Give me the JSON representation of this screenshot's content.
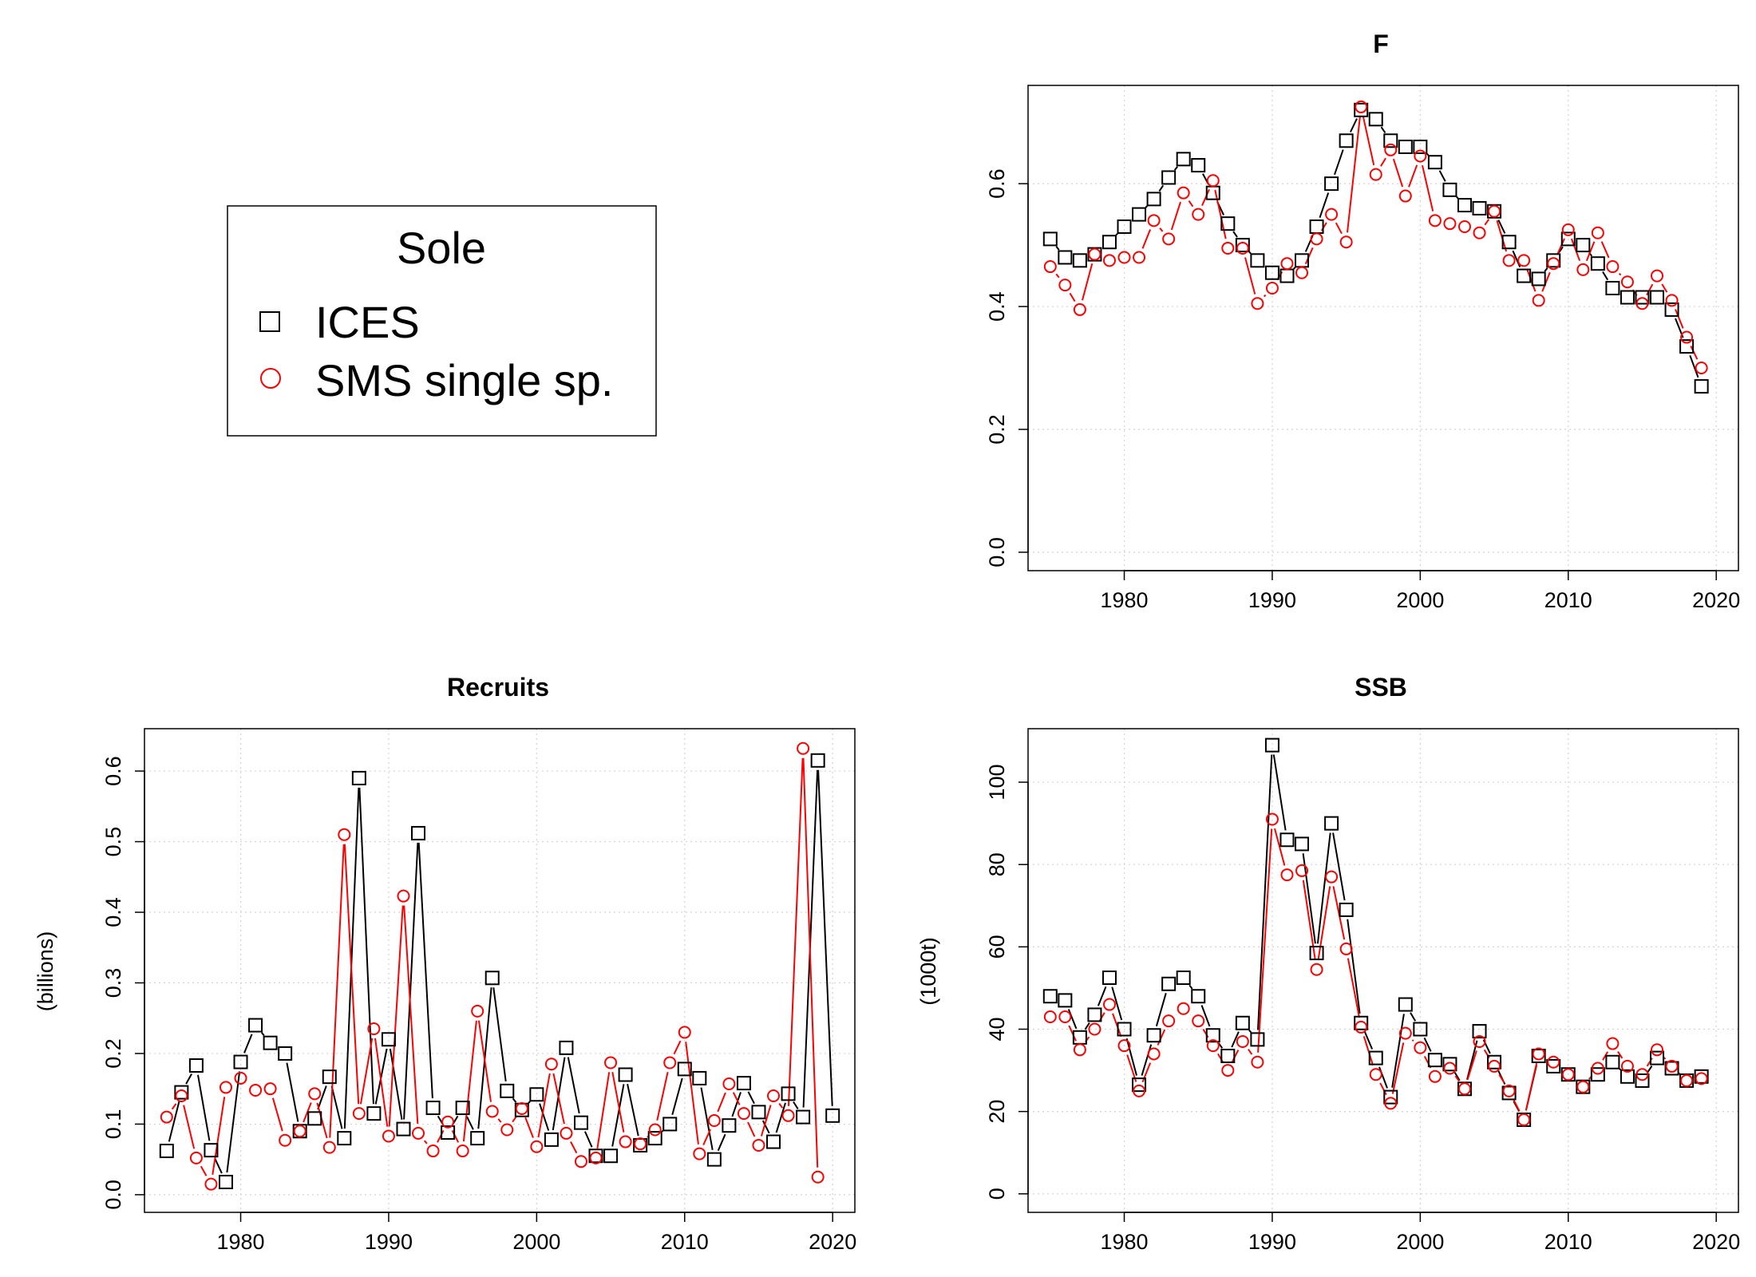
{
  "legend": {
    "title": "Sole",
    "entries": [
      {
        "label": "ICES",
        "symbol": "square",
        "color": "#000000"
      },
      {
        "label": "SMS single sp.",
        "symbol": "circle",
        "color": "#ff0000"
      }
    ]
  },
  "chart_data": [
    {
      "id": "F",
      "type": "line",
      "title": "F",
      "xlabel": "",
      "ylabel": "",
      "xlim": [
        1973.5,
        2021.5
      ],
      "ylim": [
        -0.03,
        0.76
      ],
      "xticks": [
        1980,
        1990,
        2000,
        2010,
        2020
      ],
      "yticks": [
        0.0,
        0.2,
        0.4,
        0.6
      ],
      "ytick_labels": [
        "0.0",
        "0.2",
        "0.4",
        "0.6"
      ],
      "grid": true,
      "x": [
        1975,
        1976,
        1977,
        1978,
        1979,
        1980,
        1981,
        1982,
        1983,
        1984,
        1985,
        1986,
        1987,
        1988,
        1989,
        1990,
        1991,
        1992,
        1993,
        1994,
        1995,
        1996,
        1997,
        1998,
        1999,
        2000,
        2001,
        2002,
        2003,
        2004,
        2005,
        2006,
        2007,
        2008,
        2009,
        2010,
        2011,
        2012,
        2013,
        2014,
        2015,
        2016,
        2017,
        2018,
        2019
      ],
      "series": [
        {
          "name": "ICES",
          "color": "#000000",
          "marker": "square",
          "values": [
            0.51,
            0.48,
            0.475,
            0.485,
            0.505,
            0.53,
            0.55,
            0.575,
            0.61,
            0.64,
            0.63,
            0.585,
            0.535,
            0.5,
            0.475,
            0.455,
            0.45,
            0.475,
            0.53,
            0.6,
            0.67,
            0.72,
            0.705,
            0.67,
            0.66,
            0.66,
            0.635,
            0.59,
            0.565,
            0.56,
            0.555,
            0.505,
            0.45,
            0.445,
            0.475,
            0.51,
            0.5,
            0.47,
            0.43,
            0.415,
            0.415,
            0.415,
            0.395,
            0.335,
            0.27
          ]
        },
        {
          "name": "SMS single sp.",
          "color": "#ff0000",
          "marker": "circle",
          "values": [
            0.465,
            0.435,
            0.395,
            0.485,
            0.475,
            0.48,
            0.48,
            0.54,
            0.51,
            0.585,
            0.55,
            0.605,
            0.495,
            0.495,
            0.405,
            0.43,
            0.47,
            0.455,
            0.51,
            0.55,
            0.505,
            0.725,
            0.615,
            0.655,
            0.58,
            0.645,
            0.54,
            0.535,
            0.53,
            0.52,
            0.555,
            0.475,
            0.475,
            0.41,
            0.47,
            0.525,
            0.46,
            0.52,
            0.465,
            0.44,
            0.405,
            0.45,
            0.41,
            0.35,
            0.3
          ]
        }
      ]
    },
    {
      "id": "Recruits",
      "type": "line",
      "title": "Recruits",
      "xlabel": "",
      "ylabel": "(billions)",
      "xlim": [
        1973.5,
        2021.5
      ],
      "ylim": [
        -0.025,
        0.66
      ],
      "xticks": [
        1980,
        1990,
        2000,
        2010,
        2020
      ],
      "yticks": [
        0.0,
        0.1,
        0.2,
        0.3,
        0.4,
        0.5,
        0.6
      ],
      "ytick_labels": [
        "0.0",
        "0.1",
        "0.2",
        "0.3",
        "0.4",
        "0.5",
        "0.6"
      ],
      "grid": true,
      "series": [
        {
          "name": "ICES",
          "color": "#000000",
          "marker": "square",
          "x": [
            1975,
            1976,
            1977,
            1978,
            1979,
            1980,
            1981,
            1982,
            1983,
            1984,
            1985,
            1986,
            1987,
            1988,
            1989,
            1990,
            1991,
            1992,
            1993,
            1994,
            1995,
            1996,
            1997,
            1998,
            1999,
            2000,
            2001,
            2002,
            2003,
            2004,
            2005,
            2006,
            2007,
            2008,
            2009,
            2010,
            2011,
            2012,
            2013,
            2014,
            2015,
            2016,
            2017,
            2018,
            2019,
            2020
          ],
          "values": [
            0.062,
            0.145,
            0.183,
            0.063,
            0.018,
            0.188,
            0.24,
            0.215,
            0.2,
            0.09,
            0.108,
            0.167,
            0.08,
            0.59,
            0.115,
            0.22,
            0.093,
            0.512,
            0.123,
            0.088,
            0.123,
            0.08,
            0.307,
            0.147,
            0.12,
            0.142,
            0.078,
            0.208,
            0.102,
            0.055,
            0.055,
            0.17,
            0.07,
            0.08,
            0.1,
            0.178,
            0.165,
            0.05,
            0.098,
            0.158,
            0.117,
            0.075,
            0.143,
            0.11,
            0.615,
            0.112
          ]
        },
        {
          "name": "SMS single sp.",
          "color": "#ff0000",
          "marker": "circle",
          "x": [
            1975,
            1976,
            1977,
            1978,
            1979,
            1980,
            1981,
            1982,
            1983,
            1984,
            1985,
            1986,
            1987,
            1988,
            1989,
            1990,
            1991,
            1992,
            1993,
            1994,
            1995,
            1996,
            1997,
            1998,
            1999,
            2000,
            2001,
            2002,
            2003,
            2004,
            2005,
            2006,
            2007,
            2008,
            2009,
            2010,
            2011,
            2012,
            2013,
            2014,
            2015,
            2016,
            2017,
            2018,
            2019
          ],
          "values": [
            0.11,
            0.14,
            0.052,
            0.015,
            0.152,
            0.165,
            0.148,
            0.15,
            0.077,
            0.09,
            0.143,
            0.067,
            0.51,
            0.115,
            0.235,
            0.083,
            0.423,
            0.087,
            0.062,
            0.103,
            0.062,
            0.26,
            0.118,
            0.092,
            0.122,
            0.068,
            0.185,
            0.087,
            0.047,
            0.052,
            0.187,
            0.075,
            0.072,
            0.092,
            0.187,
            0.23,
            0.058,
            0.105,
            0.157,
            0.115,
            0.07,
            0.14,
            0.112,
            0.632,
            0.025
          ]
        }
      ]
    },
    {
      "id": "SSB",
      "type": "line",
      "title": "SSB",
      "xlabel": "",
      "ylabel": "(1000t)",
      "xlim": [
        1973.5,
        2021.5
      ],
      "ylim": [
        -4.5,
        113
      ],
      "xticks": [
        1980,
        1990,
        2000,
        2010,
        2020
      ],
      "yticks": [
        0,
        20,
        40,
        60,
        80,
        100
      ],
      "ytick_labels": [
        "0",
        "20",
        "40",
        "60",
        "80",
        "100"
      ],
      "grid": true,
      "x": [
        1975,
        1976,
        1977,
        1978,
        1979,
        1980,
        1981,
        1982,
        1983,
        1984,
        1985,
        1986,
        1987,
        1988,
        1989,
        1990,
        1991,
        1992,
        1993,
        1994,
        1995,
        1996,
        1997,
        1998,
        1999,
        2000,
        2001,
        2002,
        2003,
        2004,
        2005,
        2006,
        2007,
        2008,
        2009,
        2010,
        2011,
        2012,
        2013,
        2014,
        2015,
        2016,
        2017,
        2018,
        2019
      ],
      "series": [
        {
          "name": "ICES",
          "color": "#000000",
          "marker": "square",
          "values": [
            48,
            47,
            38,
            43.5,
            52.5,
            40,
            26.5,
            38.5,
            51,
            52.5,
            48,
            38.5,
            33.5,
            41.5,
            37.5,
            109,
            86,
            85,
            58.5,
            90,
            69,
            41.5,
            33,
            23.5,
            46,
            40,
            32.5,
            31.5,
            25.5,
            39.5,
            32,
            24.5,
            18,
            33.5,
            31,
            29,
            26,
            29,
            32,
            28.5,
            27.5,
            33,
            30.5,
            27.5,
            28.5
          ]
        },
        {
          "name": "SMS single sp.",
          "color": "#ff0000",
          "marker": "circle",
          "values": [
            43,
            43,
            35,
            40,
            46,
            36,
            25,
            34,
            42,
            45,
            42,
            36,
            30,
            37,
            32,
            91,
            77.5,
            78.5,
            54.5,
            77,
            59.5,
            40.5,
            29,
            22,
            39,
            35.5,
            28.5,
            30.5,
            25.5,
            37,
            31,
            25,
            18,
            34,
            32,
            29,
            26,
            30.5,
            36.5,
            31,
            29,
            35,
            31,
            27.5,
            28
          ]
        }
      ]
    }
  ]
}
